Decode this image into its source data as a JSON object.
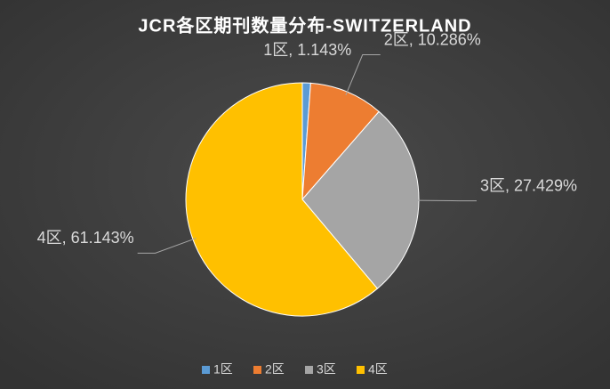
{
  "chart_data": {
    "type": "pie",
    "title": "JCR各区期刊数量分布-SWITZERLAND",
    "categories": [
      "1区",
      "2区",
      "3区",
      "4区"
    ],
    "values": [
      1.143,
      10.286,
      27.429,
      61.143
    ],
    "value_labels": [
      "1区, 1.143%",
      "2区, 10.286%",
      "3区, 27.429%",
      "4区, 61.143%"
    ],
    "colors": [
      "#5b9bd5",
      "#ed7d31",
      "#a5a5a5",
      "#ffc000"
    ],
    "legend": "bottom"
  }
}
